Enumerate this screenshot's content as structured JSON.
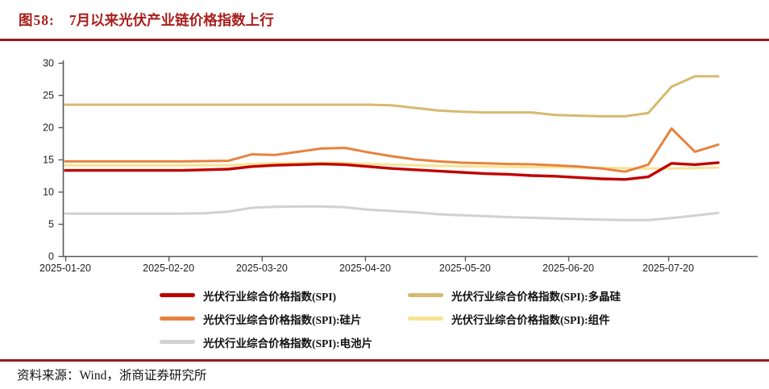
{
  "header": {
    "figure_label": "图58:",
    "title": "7月以来光伏产业链价格指数上行"
  },
  "footer": {
    "source": "资料来源：Wind，浙商证券研究所"
  },
  "colors": {
    "title_red": "#A8201D",
    "rule_red": "#9C191C",
    "axis": "#595959",
    "spi": "#C00000",
    "poly": "#D6BA70",
    "wafer": "#E8823E",
    "module": "#F7E493",
    "cell": "#D2D0D0"
  },
  "chart_data": {
    "type": "line",
    "title": "",
    "xlabel": "",
    "ylabel": "",
    "grid": false,
    "legend_position": "bottom",
    "ylim": [
      0,
      30
    ],
    "y_ticks": [
      0,
      5,
      10,
      15,
      20,
      25,
      30
    ],
    "x_ticks": [
      "2025-01-20",
      "2025-02-20",
      "2025-03-20",
      "2025-04-20",
      "2025-05-20",
      "2025-06-20",
      "2025-07-20"
    ],
    "x": [
      "2025-01-20",
      "2025-01-27",
      "2025-02-03",
      "2025-02-10",
      "2025-02-17",
      "2025-02-24",
      "2025-03-03",
      "2025-03-10",
      "2025-03-17",
      "2025-03-24",
      "2025-03-31",
      "2025-04-07",
      "2025-04-14",
      "2025-04-21",
      "2025-04-28",
      "2025-05-05",
      "2025-05-12",
      "2025-05-19",
      "2025-05-26",
      "2025-06-02",
      "2025-06-09",
      "2025-06-16",
      "2025-06-23",
      "2025-06-30",
      "2025-07-07",
      "2025-07-14",
      "2025-07-21",
      "2025-07-28",
      "2025-08-04"
    ],
    "series": [
      {
        "name": "光伏行业综合价格指数(SPI)",
        "color": "spi",
        "values": [
          13.3,
          13.3,
          13.3,
          13.3,
          13.3,
          13.3,
          13.4,
          13.5,
          13.9,
          14.1,
          14.2,
          14.3,
          14.2,
          13.9,
          13.6,
          13.4,
          13.2,
          13.0,
          12.8,
          12.7,
          12.5,
          12.4,
          12.2,
          12.0,
          11.9,
          12.3,
          14.4,
          14.2,
          14.5
        ]
      },
      {
        "name": "光伏行业综合价格指数(SPI):多晶硅",
        "color": "poly",
        "values": [
          23.5,
          23.5,
          23.5,
          23.5,
          23.5,
          23.5,
          23.5,
          23.5,
          23.5,
          23.5,
          23.5,
          23.5,
          23.5,
          23.5,
          23.4,
          23.0,
          22.6,
          22.4,
          22.3,
          22.3,
          22.3,
          21.9,
          21.8,
          21.7,
          21.7,
          22.2,
          26.3,
          27.9,
          27.9
        ]
      },
      {
        "name": "光伏行业综合价格指数(SPI):硅片",
        "color": "wafer",
        "values": [
          14.7,
          14.7,
          14.7,
          14.7,
          14.7,
          14.7,
          14.75,
          14.8,
          15.8,
          15.7,
          16.2,
          16.7,
          16.8,
          16.1,
          15.5,
          15.0,
          14.7,
          14.5,
          14.4,
          14.3,
          14.25,
          14.1,
          13.9,
          13.6,
          13.1,
          14.2,
          19.8,
          16.2,
          17.3
        ]
      },
      {
        "name": "光伏行业综合价格指数(SPI):组件",
        "color": "module",
        "values": [
          14.1,
          14.1,
          14.1,
          14.1,
          14.1,
          14.1,
          14.1,
          14.1,
          14.3,
          14.4,
          14.45,
          14.5,
          14.45,
          14.3,
          14.2,
          14.1,
          14.0,
          13.95,
          13.9,
          13.85,
          13.8,
          13.8,
          13.75,
          13.7,
          13.65,
          13.6,
          13.6,
          13.65,
          13.75
        ]
      },
      {
        "name": "光伏行业综合价格指数(SPI):电池片",
        "color": "cell",
        "values": [
          6.6,
          6.6,
          6.6,
          6.6,
          6.6,
          6.6,
          6.65,
          6.9,
          7.5,
          7.65,
          7.7,
          7.7,
          7.6,
          7.2,
          7.0,
          6.8,
          6.5,
          6.35,
          6.2,
          6.05,
          5.95,
          5.85,
          5.75,
          5.65,
          5.6,
          5.6,
          5.9,
          6.3,
          6.7
        ]
      }
    ],
    "legend_columns": [
      [
        0,
        2,
        4
      ],
      [
        1,
        3
      ]
    ]
  }
}
